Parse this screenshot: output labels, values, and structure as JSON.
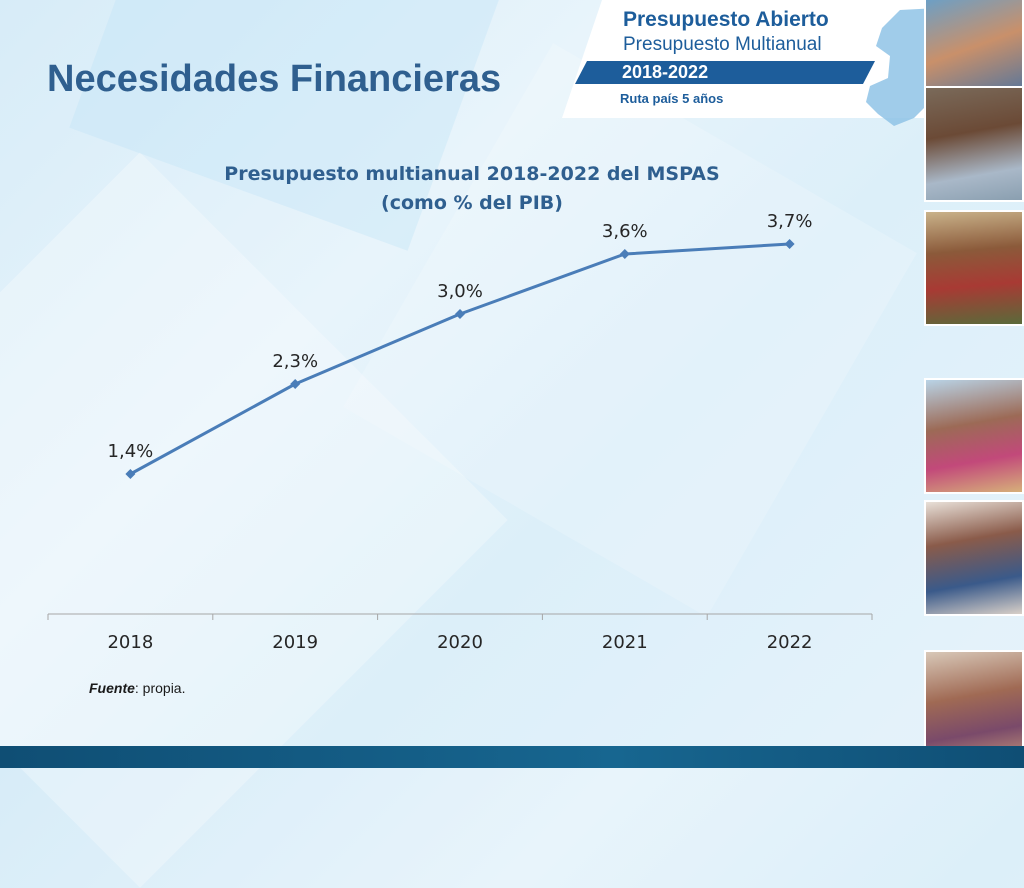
{
  "slide": {
    "title": "Necesidades Financieras"
  },
  "logo": {
    "title": "Presupuesto Abierto",
    "subtitle": "Presupuesto Multianual",
    "years": "2018-2022",
    "route": "Ruta país 5 años"
  },
  "chart_data": {
    "type": "line",
    "title_lines": [
      "Presupuesto multianual 2018-2022 del MSPAS",
      "(como % del PIB)"
    ],
    "categories": [
      "2018",
      "2019",
      "2020",
      "2021",
      "2022"
    ],
    "series": [
      {
        "values": [
          1.4,
          2.3,
          3.0,
          3.6,
          3.7
        ],
        "labels": [
          "1,4%",
          "2,3%",
          "3,0%",
          "3,6%",
          "3,7%"
        ]
      }
    ],
    "xlabel": "",
    "ylabel": "",
    "ylim": [
      0,
      4
    ],
    "grid": false,
    "legend": "none",
    "color": "#4a7db8"
  },
  "source": {
    "label": "Fuente",
    "text": ": propia."
  },
  "colors": {
    "title": "#2f5f8f",
    "brand": "#1d5d9b",
    "footer": "#0f4e74"
  }
}
